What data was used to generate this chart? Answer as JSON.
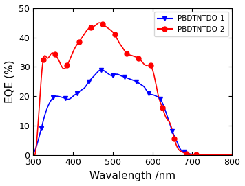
{
  "title": "",
  "xlabel": "Wavalength /nm",
  "ylabel": "EQE (%)",
  "xlim": [
    300,
    800
  ],
  "ylim": [
    0,
    50
  ],
  "xticks": [
    300,
    400,
    500,
    600,
    700,
    800
  ],
  "yticks": [
    0,
    10,
    20,
    30,
    40,
    50
  ],
  "blue_x": [
    300,
    320,
    330,
    340,
    350,
    360,
    370,
    380,
    390,
    400,
    410,
    420,
    430,
    440,
    450,
    460,
    470,
    480,
    490,
    500,
    510,
    520,
    530,
    540,
    550,
    560,
    570,
    580,
    590,
    600,
    610,
    620,
    630,
    640,
    650,
    660,
    670,
    680,
    690,
    700,
    720,
    750,
    800
  ],
  "blue_y": [
    0.5,
    9,
    14,
    17.5,
    19.5,
    20,
    19.7,
    19.3,
    19.0,
    20,
    21,
    22,
    23,
    25,
    26.5,
    28,
    29,
    28.5,
    27.5,
    27,
    27.5,
    27,
    26.5,
    26,
    25.5,
    25,
    24,
    23,
    21,
    20.5,
    20,
    19,
    16,
    12,
    8,
    5,
    2,
    1,
    0.5,
    0.2,
    0.1,
    0.05,
    0.0
  ],
  "red_x": [
    300,
    315,
    325,
    335,
    345,
    355,
    365,
    375,
    385,
    395,
    405,
    415,
    425,
    435,
    445,
    455,
    465,
    475,
    485,
    495,
    505,
    515,
    525,
    535,
    545,
    555,
    565,
    575,
    585,
    595,
    605,
    615,
    625,
    635,
    645,
    655,
    665,
    675,
    685,
    695,
    710,
    730,
    760,
    800
  ],
  "red_y": [
    0.5,
    16.5,
    32.5,
    33.0,
    34.5,
    34.2,
    32.0,
    29.5,
    30.5,
    33.5,
    36.5,
    38.5,
    40.5,
    42.5,
    43.5,
    44.0,
    45.0,
    44.5,
    43.5,
    42.5,
    41.0,
    38.5,
    36.5,
    34.5,
    34.0,
    33.5,
    33.0,
    31.5,
    30.5,
    30.5,
    26.5,
    20.0,
    16.0,
    12.5,
    10.5,
    5.5,
    2.0,
    1.0,
    0.3,
    0.1,
    0.05,
    0.02,
    0.01,
    0.0
  ],
  "blue_marker_x": [
    320,
    350,
    380,
    410,
    440,
    470,
    500,
    530,
    560,
    590,
    620,
    650,
    680
  ],
  "red_marker_x": [
    325,
    355,
    385,
    415,
    445,
    475,
    505,
    535,
    565,
    595,
    625,
    655,
    685,
    710
  ],
  "line_color_blue": "#0000FF",
  "line_color_red": "#FF0000",
  "legend_label_blue": "PBDTNTDO-1",
  "legend_label_red": "PBDTNTDO-2",
  "background_color": "#ffffff",
  "tick_fontsize": 9,
  "label_fontsize": 11
}
